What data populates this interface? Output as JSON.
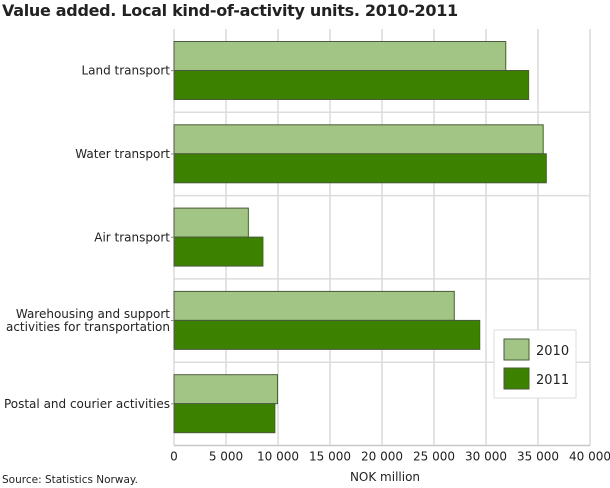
{
  "title": "Value added. Local kind-of-activity units. 2010-2011",
  "source": "Source: Statistics Norway.",
  "colors": {
    "2010": "#a2c586",
    "2011": "#3c8200",
    "grid": "#c8c8c8",
    "bar_border": "#4a5a3a"
  },
  "chart_data": {
    "type": "bar",
    "orientation": "horizontal",
    "title": "Value added. Local kind-of-activity units. 2010-2011",
    "xlabel": "NOK million",
    "ylabel": "",
    "xlim": [
      0,
      40000
    ],
    "ticks": [
      "0",
      "5 000",
      "10 000",
      "15 000",
      "20 000",
      "25 000",
      "30 000",
      "35 000",
      "40 000"
    ],
    "tick_values": [
      0,
      5000,
      10000,
      15000,
      20000,
      25000,
      30000,
      35000,
      40000
    ],
    "grid": true,
    "legend_position": "bottom-right",
    "categories": [
      [
        "Land transport"
      ],
      [
        "Water transport"
      ],
      [
        "Air transport"
      ],
      [
        "Warehousing and support",
        "activities for transportation"
      ],
      [
        "Postal and courier activities"
      ]
    ],
    "series": [
      {
        "name": "2010",
        "values": [
          31900,
          35500,
          7150,
          26950,
          9950
        ]
      },
      {
        "name": "2011",
        "values": [
          34100,
          35800,
          8550,
          29400,
          9700
        ]
      }
    ]
  }
}
